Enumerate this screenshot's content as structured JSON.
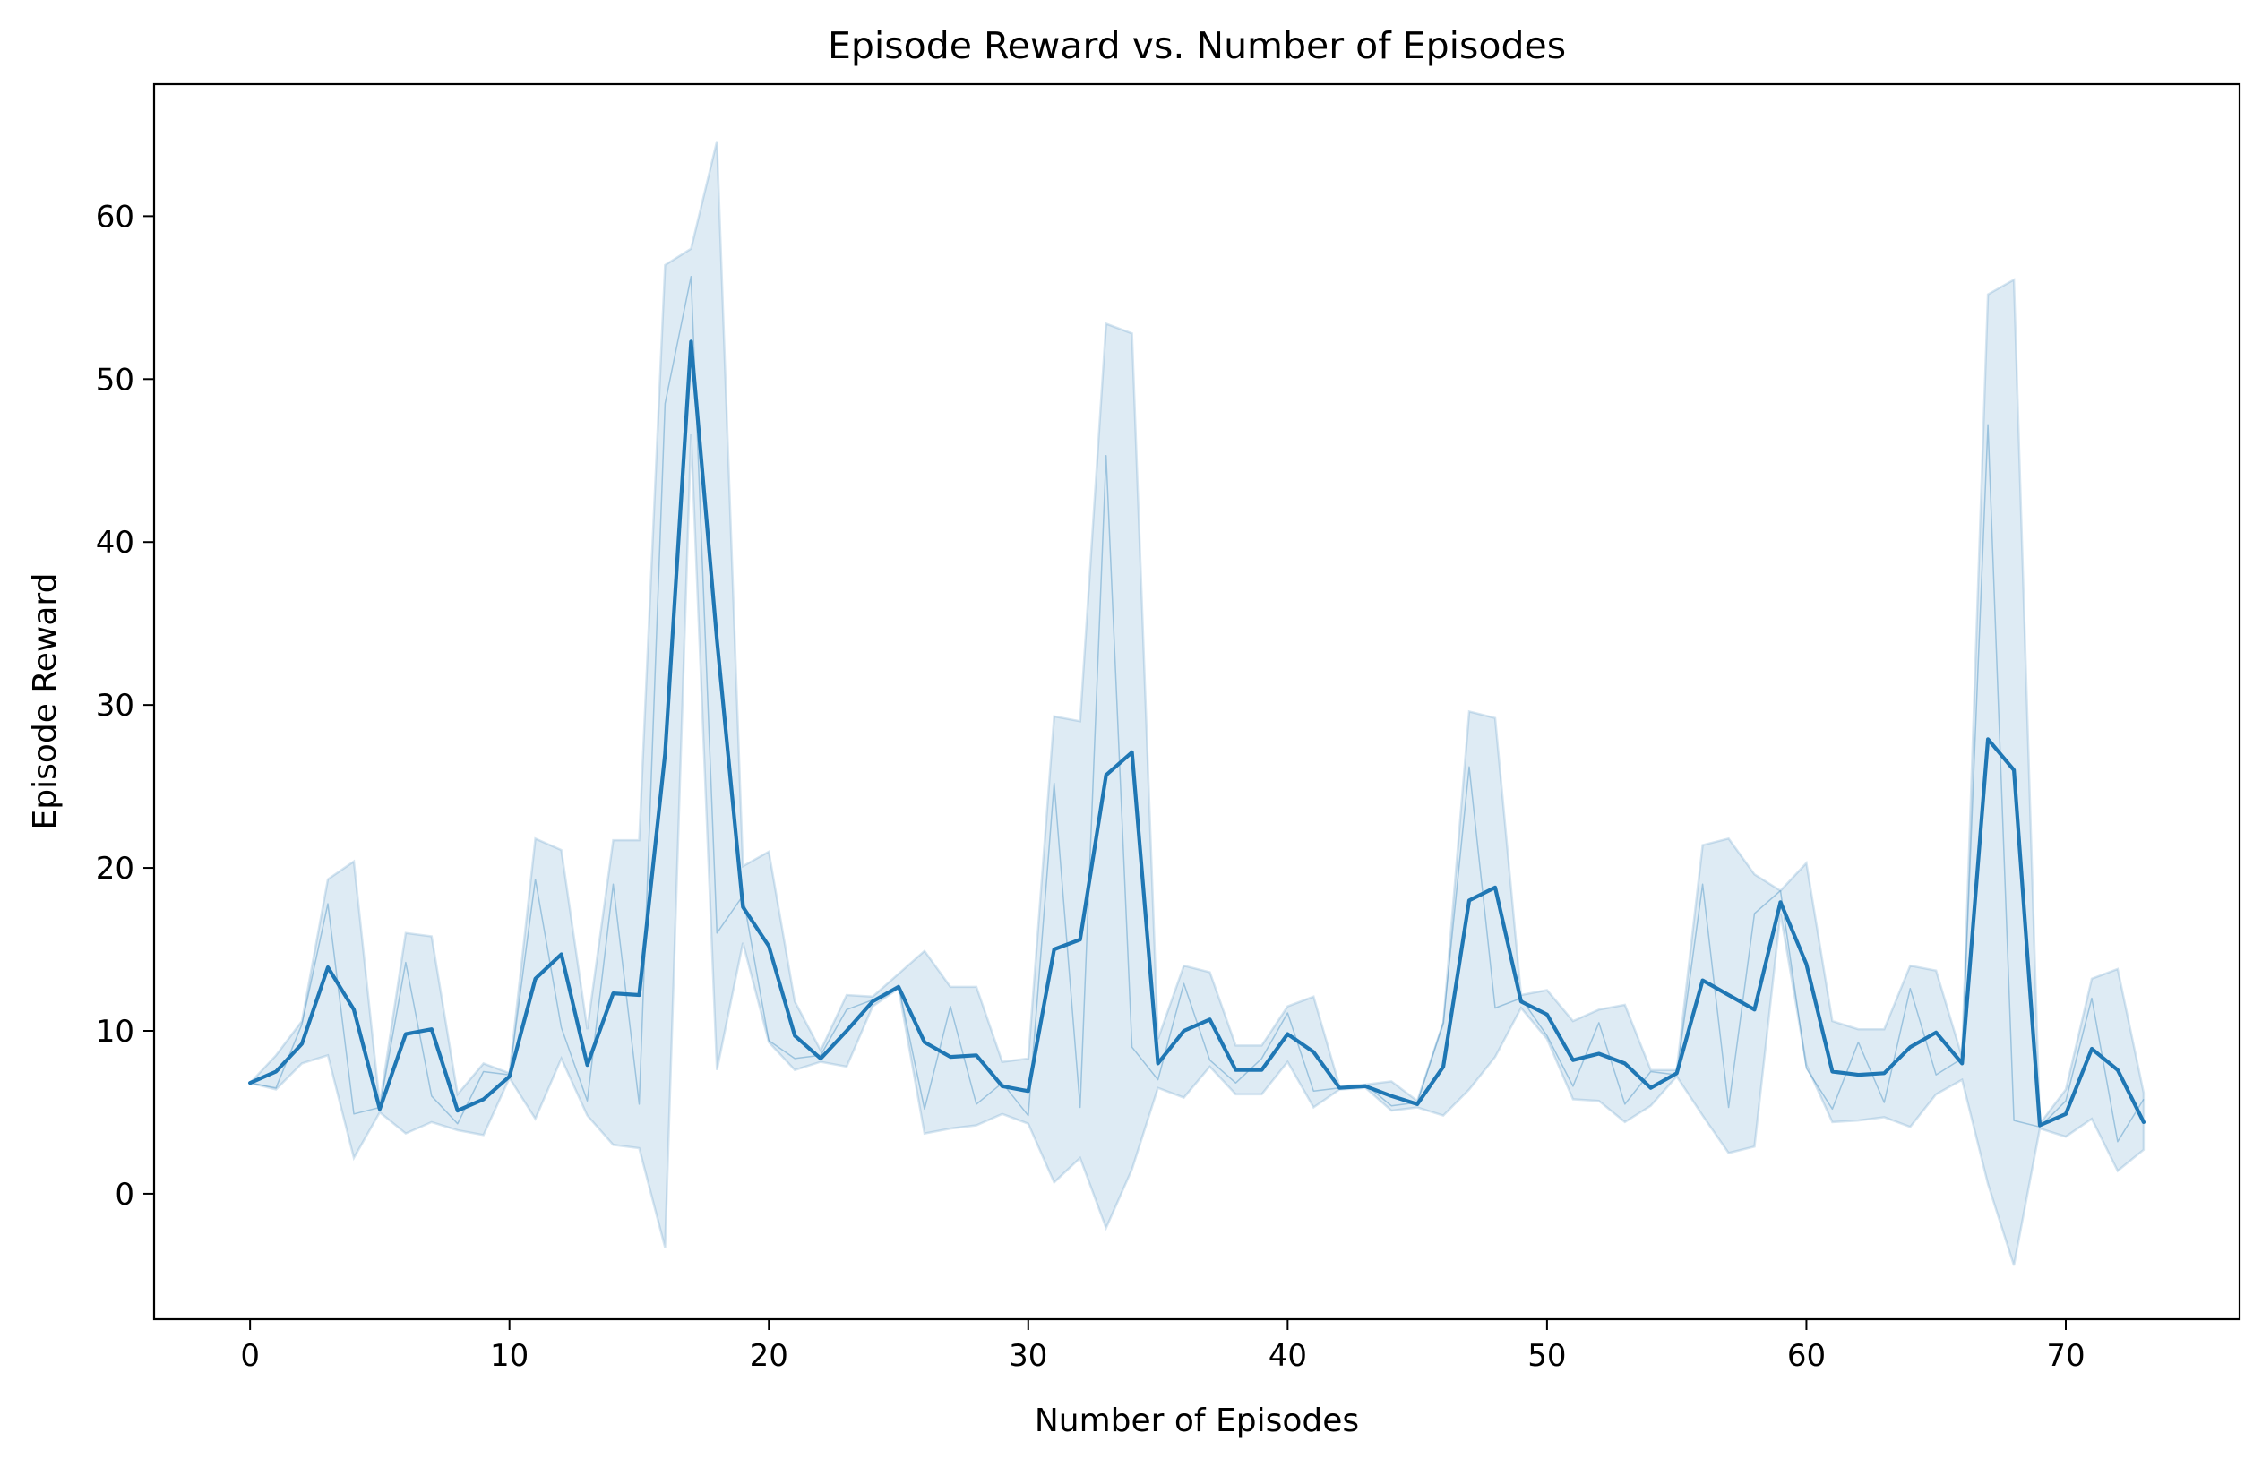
{
  "chart_data": {
    "type": "line",
    "title": "Episode Reward vs. Number of Episodes",
    "xlabel": "Number of Episodes",
    "ylabel": "Episode Reward",
    "xlim": [
      -3.7,
      76.7
    ],
    "ylim": [
      -7.7,
      68.1
    ],
    "xticks": [
      0,
      10,
      20,
      30,
      40,
      50,
      60,
      70
    ],
    "yticks": [
      0,
      10,
      20,
      30,
      40,
      50,
      60
    ],
    "grid": false,
    "legend": "none",
    "colors": {
      "mean_line": "#1f77b4",
      "band_fill": "#1f77b4",
      "raw_line": "#1f77b4"
    },
    "x": [
      0,
      1,
      2,
      3,
      4,
      5,
      6,
      7,
      8,
      9,
      10,
      11,
      12,
      13,
      14,
      15,
      16,
      17,
      18,
      19,
      20,
      21,
      22,
      23,
      24,
      25,
      26,
      27,
      28,
      29,
      30,
      31,
      32,
      33,
      34,
      35,
      36,
      37,
      38,
      39,
      40,
      41,
      42,
      43,
      44,
      45,
      46,
      47,
      48,
      49,
      50,
      51,
      52,
      53,
      54,
      55,
      56,
      57,
      58,
      59,
      60,
      61,
      62,
      63,
      64,
      65,
      66,
      67,
      68,
      69,
      70,
      71,
      72,
      73
    ],
    "series": [
      {
        "role": "mean",
        "values": [
          6.8,
          7.5,
          9.2,
          13.9,
          11.3,
          5.2,
          9.8,
          10.1,
          5.1,
          5.8,
          7.2,
          13.2,
          14.7,
          7.9,
          12.3,
          12.2,
          27.0,
          52.3,
          34.0,
          17.6,
          15.2,
          9.7,
          8.3,
          10.0,
          11.8,
          12.7,
          9.3,
          8.4,
          8.5,
          6.6,
          6.3,
          15.0,
          15.6,
          25.7,
          27.1,
          8.0,
          10.0,
          10.7,
          7.6,
          7.6,
          9.8,
          8.7,
          6.5,
          6.6,
          6.0,
          5.5,
          7.8,
          18.0,
          18.8,
          11.8,
          11.0,
          8.2,
          8.6,
          8.0,
          6.5,
          7.4,
          13.1,
          12.2,
          11.3,
          17.9,
          14.1,
          7.5,
          7.3,
          7.4,
          9.0,
          9.9,
          8.0,
          27.9,
          26.0,
          4.2,
          4.9,
          8.9,
          7.6,
          4.4
        ]
      },
      {
        "role": "raw",
        "values": [
          6.8,
          6.5,
          10.4,
          17.8,
          4.9,
          5.3,
          14.2,
          6.0,
          4.3,
          7.5,
          7.3,
          19.3,
          10.2,
          5.7,
          19.0,
          5.5,
          48.5,
          56.3,
          16.0,
          18.3,
          9.4,
          8.3,
          8.5,
          11.3,
          11.9,
          12.8,
          5.2,
          11.5,
          5.5,
          6.8,
          4.8,
          25.2,
          5.3,
          45.3,
          9.0,
          7.0,
          12.9,
          8.2,
          6.8,
          8.3,
          11.1,
          6.3,
          6.5,
          6.7,
          5.4,
          5.6,
          10.5,
          26.2,
          11.4,
          12.0,
          9.7,
          6.6,
          10.5,
          5.5,
          7.5,
          7.3,
          19.0,
          5.3,
          17.2,
          18.6,
          7.7,
          5.2,
          9.3,
          5.6,
          12.6,
          7.3,
          8.3,
          47.2,
          4.5,
          4.1,
          5.7,
          12.0,
          3.2,
          5.8
        ]
      },
      {
        "role": "upper_bound",
        "values": [
          6.8,
          8.5,
          10.6,
          19.3,
          20.4,
          5.5,
          16.0,
          15.8,
          6.1,
          8.0,
          7.4,
          21.8,
          21.1,
          10.1,
          21.7,
          21.7,
          57.0,
          58.0,
          64.6,
          20.1,
          21.0,
          11.8,
          8.8,
          12.2,
          12.1,
          13.5,
          14.9,
          12.7,
          12.7,
          8.1,
          8.3,
          29.3,
          29.0,
          53.4,
          52.8,
          9.5,
          14.0,
          13.6,
          9.1,
          9.1,
          11.5,
          12.1,
          6.6,
          6.7,
          6.9,
          5.7,
          10.5,
          29.6,
          29.2,
          12.2,
          12.5,
          10.6,
          11.3,
          11.6,
          7.6,
          7.6,
          21.4,
          21.8,
          19.6,
          18.6,
          20.3,
          10.6,
          10.1,
          10.1,
          14.0,
          13.7,
          8.4,
          55.2,
          56.1,
          4.3,
          6.4,
          13.2,
          13.8,
          6.2
        ]
      },
      {
        "role": "lower_bound",
        "values": [
          6.8,
          6.4,
          8.0,
          8.5,
          2.2,
          5.0,
          3.7,
          4.4,
          3.9,
          3.6,
          7.1,
          4.6,
          8.3,
          4.8,
          3.0,
          2.8,
          -3.3,
          46.6,
          7.6,
          15.4,
          9.3,
          7.6,
          8.1,
          7.8,
          11.5,
          12.6,
          3.7,
          4.0,
          4.2,
          4.9,
          4.3,
          0.7,
          2.2,
          -2.1,
          1.5,
          6.5,
          5.9,
          7.8,
          6.1,
          6.1,
          8.1,
          5.3,
          6.4,
          6.5,
          5.1,
          5.3,
          4.8,
          6.4,
          8.4,
          11.4,
          9.5,
          5.8,
          5.7,
          4.4,
          5.4,
          7.2,
          4.8,
          2.5,
          2.9,
          17.2,
          7.9,
          4.4,
          4.5,
          4.7,
          4.1,
          6.1,
          7.0,
          0.6,
          -4.4,
          4.0,
          3.5,
          4.6,
          1.4,
          2.7
        ]
      }
    ]
  }
}
